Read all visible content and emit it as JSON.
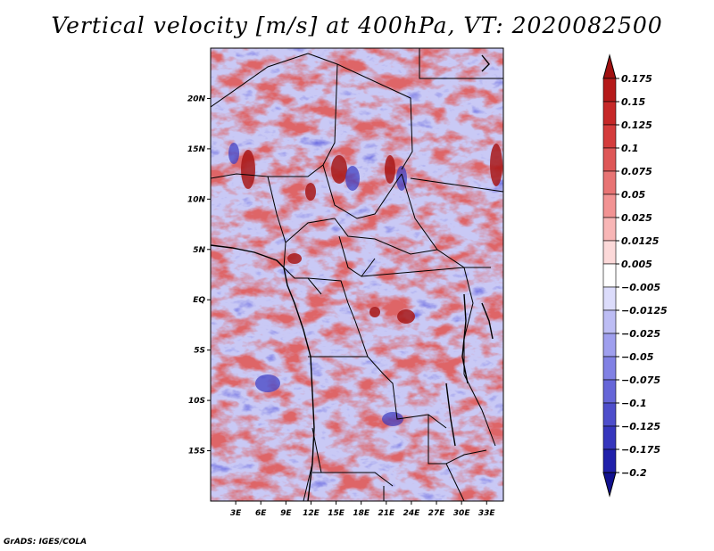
{
  "title": "Vertical velocity [m/s] at 400hPa, VT: 2020082500",
  "credit": "GrADS: IGES/COLA",
  "map": {
    "lat_labels": [
      "20N",
      "15N",
      "10N",
      "5N",
      "EQ",
      "5S",
      "10S",
      "15S"
    ],
    "lat_values": [
      20,
      15,
      10,
      5,
      0,
      -5,
      -10,
      -15
    ],
    "lon_labels": [
      "3E",
      "6E",
      "9E",
      "12E",
      "15E",
      "18E",
      "21E",
      "24E",
      "27E",
      "30E",
      "33E"
    ],
    "lon_values": [
      3,
      6,
      9,
      12,
      15,
      18,
      21,
      24,
      27,
      30,
      33
    ],
    "lon_range": [
      0,
      35
    ],
    "lat_range": [
      -20,
      25
    ]
  },
  "colorbar": {
    "labels": [
      "0.175",
      "0.15",
      "0.125",
      "0.1",
      "0.075",
      "0.05",
      "0.025",
      "0.0125",
      "0.005",
      "−0.005",
      "−0.0125",
      "−0.025",
      "−0.05",
      "−0.075",
      "−0.1",
      "−0.125",
      "−0.175",
      "−0.2"
    ],
    "colors": [
      "#a01010",
      "#b51a1a",
      "#c62828",
      "#d43c3c",
      "#de5757",
      "#e87474",
      "#f29393",
      "#f8b6b6",
      "#fcd9d9",
      "#ffffff",
      "#dcdcfb",
      "#bdbdf4",
      "#9f9fee",
      "#8181e4",
      "#6666d8",
      "#4e4ecb",
      "#3636bd",
      "#2020aa",
      "#11118f"
    ]
  }
}
